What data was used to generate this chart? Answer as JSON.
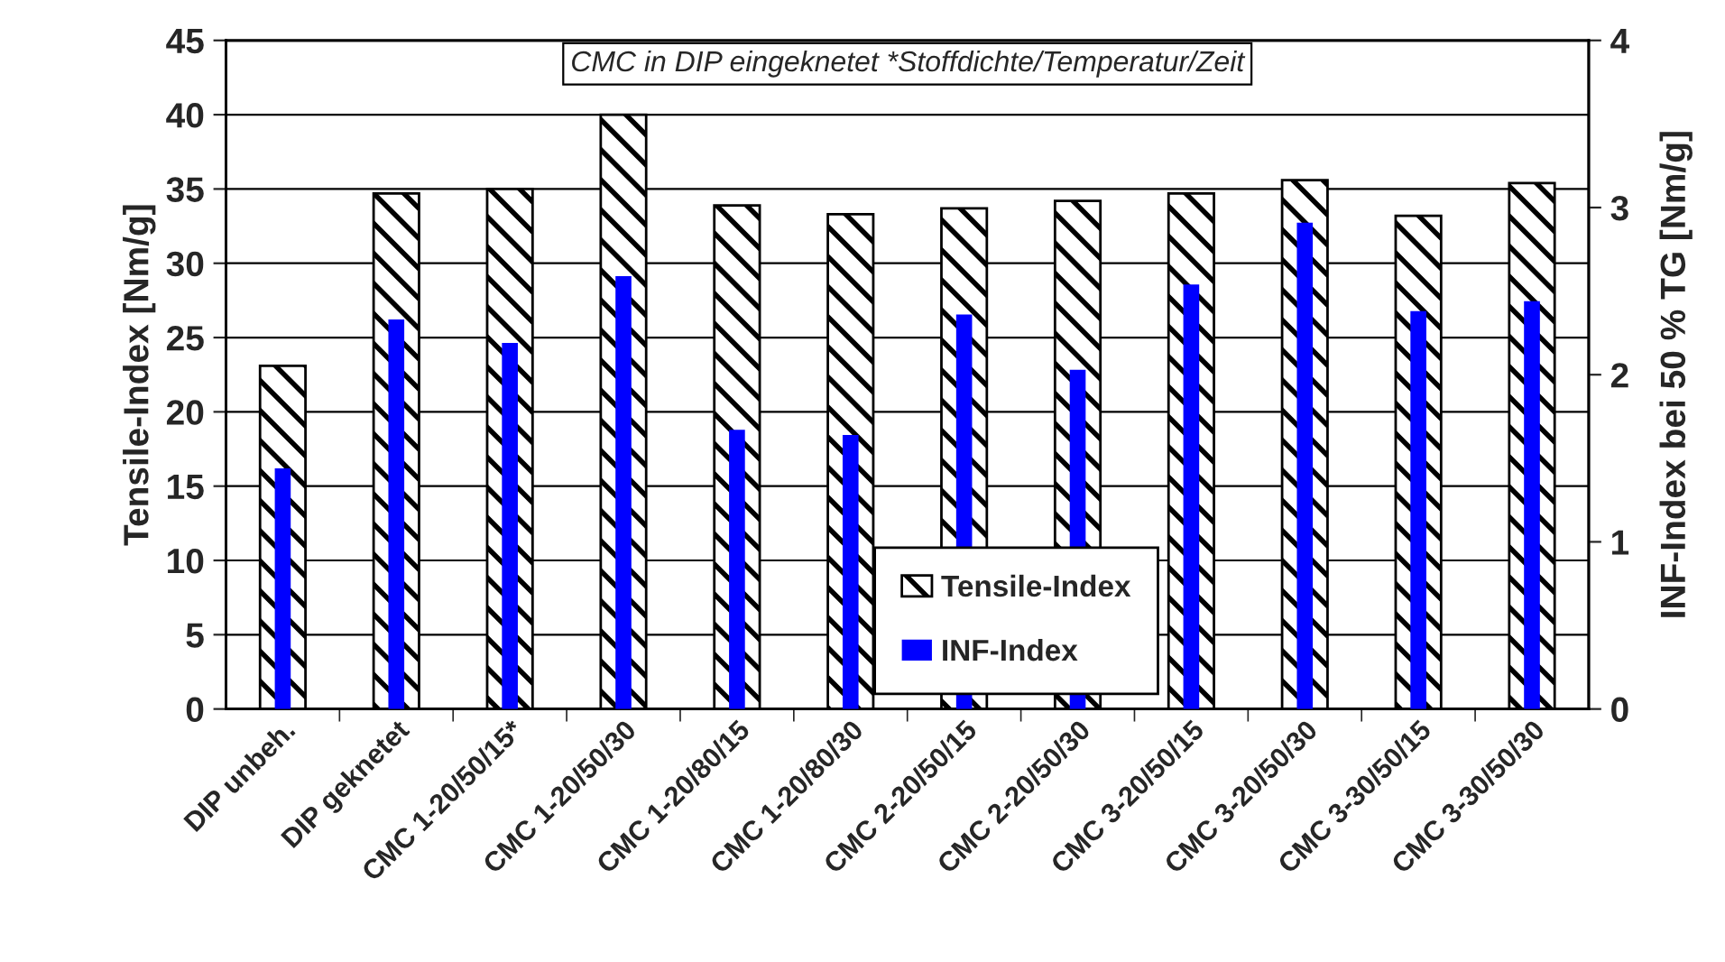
{
  "chart_data": {
    "type": "bar",
    "categories": [
      "DIP unbeh.",
      "DIP geknetet",
      "CMC 1-20/50/15*",
      "CMC 1-20/50/30",
      "CMC 1-20/80/15",
      "CMC 1-20/80/30",
      "CMC 2-20/50/15",
      "CMC 2-20/50/30",
      "CMC 3-20/50/15",
      "CMC 3-20/50/30",
      "CMC 3-30/50/15",
      "CMC 3-30/50/30"
    ],
    "series": [
      {
        "name": "Tensile-Index",
        "color": "#000000",
        "values": [
          23.1,
          34.7,
          35.0,
          40.0,
          33.9,
          33.3,
          33.7,
          34.2,
          34.7,
          35.6,
          33.2,
          35.4
        ]
      },
      {
        "name": "INF-Index",
        "color": "#0000ff",
        "axis": "y2",
        "values": [
          1.44,
          2.33,
          2.19,
          2.59,
          1.67,
          1.64,
          2.36,
          2.03,
          2.54,
          2.91,
          2.38,
          2.44
        ]
      }
    ],
    "ylabel": "Tensile-Index [Nm/g]",
    "y2label": "INF-Index bei 50 % TG [Nm/g]",
    "ylim": [
      0,
      45
    ],
    "yticks": [
      0,
      5,
      10,
      15,
      20,
      25,
      30,
      35,
      40,
      45
    ],
    "y2lim": [
      0,
      4
    ],
    "y2ticks": [
      0,
      1,
      2,
      3,
      4
    ],
    "annotations": [
      "CMC in DIP eingeknetet *Stoffdichte/Temperatur/Zeit"
    ],
    "grid": "y",
    "legend": "bottom"
  }
}
